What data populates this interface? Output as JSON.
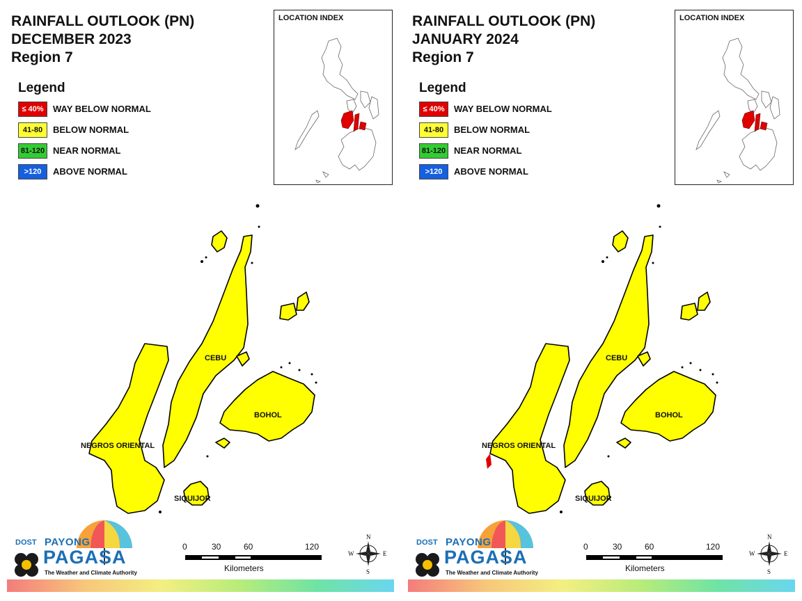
{
  "panels": [
    {
      "title_line1": "RAINFALL OUTLOOK (PN)",
      "title_line2": "DECEMBER 2023",
      "title_line3": "Region 7",
      "has_red_patch": false
    },
    {
      "title_line1": "RAINFALL OUTLOOK (PN)",
      "title_line2": "JANUARY 2024",
      "title_line3": "Region 7",
      "has_red_patch": true
    }
  ],
  "legend": {
    "heading": "Legend",
    "items": [
      {
        "range": "≤ 40%",
        "label": "WAY BELOW NORMAL",
        "color": "#e00000",
        "text_color": "#ffffff"
      },
      {
        "range": "41-80",
        "label": "BELOW NORMAL",
        "color": "#ffff33",
        "text_color": "#111111"
      },
      {
        "range": "81-120",
        "label": "NEAR NORMAL",
        "color": "#33cc33",
        "text_color": "#111111"
      },
      {
        "range": ">120",
        "label": "ABOVE NORMAL",
        "color": "#1560e0",
        "text_color": "#ffffff"
      }
    ]
  },
  "location_index": {
    "title": "LOCATION INDEX"
  },
  "map": {
    "fill_color": "#ffff00",
    "labels": {
      "cebu": "CEBU",
      "bohol": "BOHOL",
      "negros": "NEGROS ORIENTAL",
      "siquijor": "SIQUIJOR"
    }
  },
  "scale": {
    "ticks": [
      "0",
      "30",
      "60",
      "120"
    ],
    "unit": "Kilometers"
  },
  "compass": {
    "n": "N",
    "s": "S",
    "e": "E",
    "w": "W"
  },
  "logo": {
    "dost": "DOST",
    "payong": "PAYONG",
    "pagasa": "PAGASA",
    "tagline": "The Weather and Climate Authority"
  }
}
